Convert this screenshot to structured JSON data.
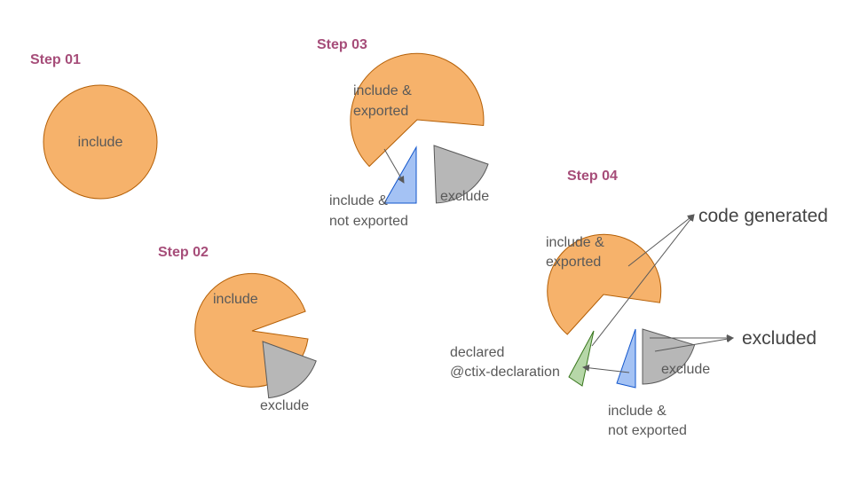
{
  "steps": {
    "s1": "Step 01",
    "s2": "Step 02",
    "s3": "Step 03",
    "s4": "Step 04"
  },
  "step01": {
    "include": "include"
  },
  "step02": {
    "include": "include",
    "exclude": "exclude"
  },
  "step03": {
    "include_exported": [
      "include &",
      "exported"
    ],
    "include_not_exported": [
      "include &",
      "not exported"
    ],
    "exclude": "exclude"
  },
  "step04": {
    "include_exported": [
      "include &",
      "exported"
    ],
    "include_not_exported": [
      "include &",
      "not exported"
    ],
    "exclude": "exclude",
    "declared": [
      "declared",
      "@ctix-declaration"
    ],
    "code_generated": "code generated",
    "excluded": "excluded"
  },
  "colors": {
    "step_title": "#a64d79",
    "include": "#f6b26b",
    "exclude": "#b7b7b7",
    "not_exported": "#a4c2f4",
    "declared": "#b6d7a8"
  }
}
